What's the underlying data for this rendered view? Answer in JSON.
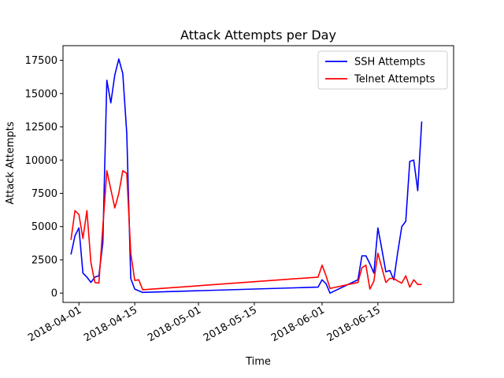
{
  "chart_data": {
    "type": "line",
    "title": "Attack Attempts per Day",
    "xlabel": "Time",
    "ylabel": "Attack Attempts",
    "xlim": [
      "2018-03-28",
      "2018-07-04"
    ],
    "ylim": [
      -700,
      18600
    ],
    "x_ticks": [
      "2018-04-01",
      "2018-04-15",
      "2018-05-01",
      "2018-05-15",
      "2018-06-01",
      "2018-06-15"
    ],
    "y_ticks": [
      0,
      2500,
      5000,
      7500,
      10000,
      12500,
      15000,
      17500
    ],
    "y_tick_labels": [
      "0",
      "2500",
      "5000",
      "7500",
      "10000",
      "12500",
      "15000",
      "17500"
    ],
    "legend_position": "top-right",
    "grid": false,
    "series": [
      {
        "name": "SSH Attempts",
        "color": "#0000ff",
        "points": [
          [
            "2018-03-30",
            2900
          ],
          [
            "2018-03-31",
            4300
          ],
          [
            "2018-04-01",
            4900
          ],
          [
            "2018-04-02",
            1500
          ],
          [
            "2018-04-03",
            1200
          ],
          [
            "2018-04-04",
            800
          ],
          [
            "2018-04-05",
            1200
          ],
          [
            "2018-04-06",
            1300
          ],
          [
            "2018-04-07",
            3800
          ],
          [
            "2018-04-08",
            16000
          ],
          [
            "2018-04-09",
            14300
          ],
          [
            "2018-04-10",
            16400
          ],
          [
            "2018-04-11",
            17600
          ],
          [
            "2018-04-12",
            16500
          ],
          [
            "2018-04-13",
            12000
          ],
          [
            "2018-04-14",
            1100
          ],
          [
            "2018-04-15",
            300
          ],
          [
            "2018-04-17",
            50
          ],
          [
            "2018-05-31",
            450
          ],
          [
            "2018-06-01",
            1000
          ],
          [
            "2018-06-02",
            700
          ],
          [
            "2018-06-03",
            0
          ],
          [
            "2018-06-10",
            1000
          ],
          [
            "2018-06-11",
            2800
          ],
          [
            "2018-06-12",
            2800
          ],
          [
            "2018-06-13",
            2200
          ],
          [
            "2018-06-14",
            1500
          ],
          [
            "2018-06-15",
            4900
          ],
          [
            "2018-06-16",
            3300
          ],
          [
            "2018-06-17",
            1600
          ],
          [
            "2018-06-18",
            1700
          ],
          [
            "2018-06-19",
            1000
          ],
          [
            "2018-06-20",
            3100
          ],
          [
            "2018-06-21",
            5000
          ],
          [
            "2018-06-22",
            5400
          ],
          [
            "2018-06-23",
            9900
          ],
          [
            "2018-06-24",
            10000
          ],
          [
            "2018-06-25",
            7700
          ],
          [
            "2018-06-26",
            12900
          ]
        ]
      },
      {
        "name": "Telnet Attempts",
        "color": "#ff0000",
        "points": [
          [
            "2018-03-30",
            4000
          ],
          [
            "2018-03-31",
            6200
          ],
          [
            "2018-04-01",
            5900
          ],
          [
            "2018-04-02",
            4100
          ],
          [
            "2018-04-03",
            6200
          ],
          [
            "2018-04-04",
            2300
          ],
          [
            "2018-04-05",
            800
          ],
          [
            "2018-04-06",
            750
          ],
          [
            "2018-04-07",
            5000
          ],
          [
            "2018-04-08",
            9200
          ],
          [
            "2018-04-09",
            7800
          ],
          [
            "2018-04-10",
            6400
          ],
          [
            "2018-04-11",
            7500
          ],
          [
            "2018-04-12",
            9200
          ],
          [
            "2018-04-13",
            9000
          ],
          [
            "2018-04-14",
            3000
          ],
          [
            "2018-04-15",
            950
          ],
          [
            "2018-04-16",
            1000
          ],
          [
            "2018-04-17",
            250
          ],
          [
            "2018-05-31",
            1200
          ],
          [
            "2018-06-01",
            2100
          ],
          [
            "2018-06-02",
            1300
          ],
          [
            "2018-06-03",
            350
          ],
          [
            "2018-06-10",
            800
          ],
          [
            "2018-06-11",
            1900
          ],
          [
            "2018-06-12",
            2100
          ],
          [
            "2018-06-13",
            300
          ],
          [
            "2018-06-14",
            900
          ],
          [
            "2018-06-15",
            3000
          ],
          [
            "2018-06-16",
            1900
          ],
          [
            "2018-06-17",
            800
          ],
          [
            "2018-06-18",
            1100
          ],
          [
            "2018-06-19",
            1100
          ],
          [
            "2018-06-20",
            900
          ],
          [
            "2018-06-21",
            750
          ],
          [
            "2018-06-22",
            1300
          ],
          [
            "2018-06-23",
            450
          ],
          [
            "2018-06-24",
            1000
          ],
          [
            "2018-06-25",
            650
          ],
          [
            "2018-06-26",
            650
          ]
        ]
      }
    ]
  }
}
